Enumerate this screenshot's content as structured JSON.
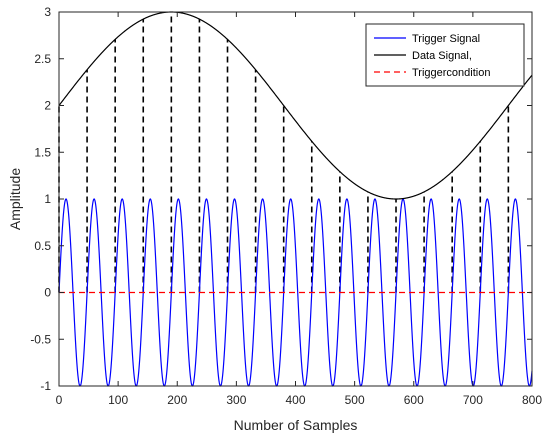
{
  "chart_data": {
    "type": "line",
    "xlabel": "Number of Samples",
    "ylabel": "Amplitude",
    "xlim": [
      0,
      800
    ],
    "ylim": [
      -1,
      3
    ],
    "xticks": [
      0,
      100,
      200,
      300,
      400,
      500,
      600,
      700,
      800
    ],
    "yticks": [
      -1,
      -0.5,
      0,
      0.5,
      1,
      1.5,
      2,
      2.5,
      3
    ],
    "grid": false,
    "legend_position": "top-right",
    "series": [
      {
        "name": "Trigger Signal",
        "color": "#0000ff",
        "style": "solid",
        "function": "sin",
        "amplitude": 1,
        "period": 47.5,
        "x_range": [
          0,
          800
        ]
      },
      {
        "name": "Data Signal,",
        "color": "#000000",
        "style": "solid",
        "function": "sin",
        "offset": 2,
        "amplitude": 1,
        "period": 760,
        "x_range": [
          0,
          800
        ]
      },
      {
        "name": "Triggercondition",
        "color": "#ff0000",
        "style": "dashed",
        "function": "constant",
        "value": 0,
        "x_range": [
          0,
          800
        ]
      }
    ],
    "sample_markers": {
      "color": "#000000",
      "style": "dashed",
      "x": [
        0,
        47.5,
        95,
        142.5,
        190,
        237.5,
        285,
        332.5,
        380,
        427.5,
        475,
        522.5,
        570,
        617.5,
        665,
        712.5,
        760
      ]
    }
  }
}
